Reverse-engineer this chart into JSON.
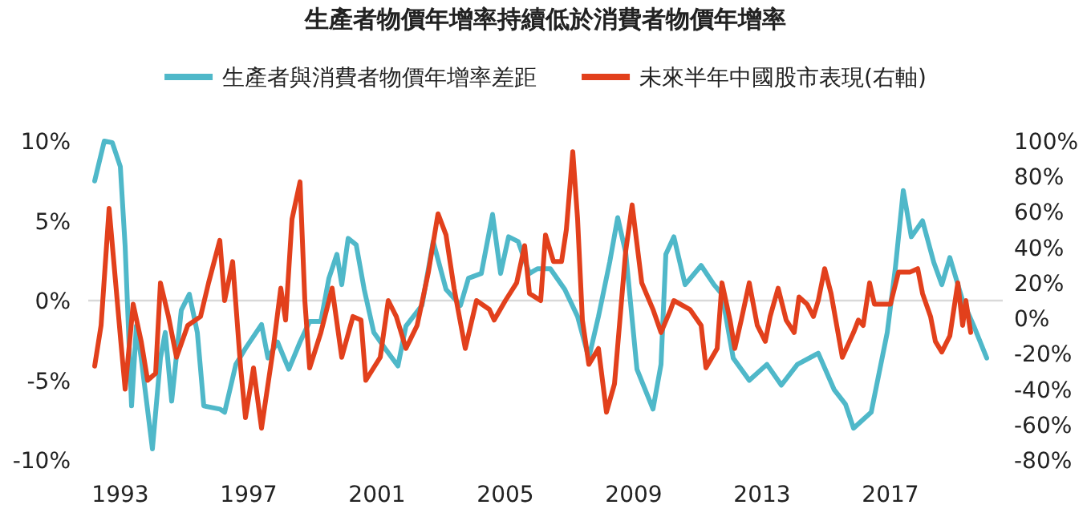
{
  "chart_data": {
    "type": "line",
    "title": "生產者物價年增率持續低於消費者物價年增率",
    "legend": "top",
    "xlim": [
      1992,
      2020.5
    ],
    "xticks": [
      1993,
      1997,
      2001,
      2005,
      2009,
      2013,
      2017
    ],
    "ylim": [
      -10,
      10
    ],
    "yticks": [
      {
        "value": 10,
        "label": "10%"
      },
      {
        "value": 5,
        "label": "5%"
      },
      {
        "value": 0,
        "label": "0%"
      },
      {
        "value": -5,
        "label": "-5%"
      },
      {
        "value": -10,
        "label": "-10%"
      }
    ],
    "y2lim": [
      -80,
      100
    ],
    "y2ticks": [
      {
        "value": 100,
        "label": "100%"
      },
      {
        "value": 80,
        "label": "80%"
      },
      {
        "value": 60,
        "label": "60%"
      },
      {
        "value": 40,
        "label": "40%"
      },
      {
        "value": 20,
        "label": "20%"
      },
      {
        "value": 0,
        "label": "0%"
      },
      {
        "value": -20,
        "label": "-20%"
      },
      {
        "value": -40,
        "label": "-40%"
      },
      {
        "value": -60,
        "label": "-60%"
      },
      {
        "value": -80,
        "label": "-80%"
      }
    ],
    "ref_lines": [
      {
        "axis": "y",
        "value": 0,
        "color": "#d9d9d9"
      }
    ],
    "series": [
      {
        "name": "生產者與消費者物價年增率差距",
        "color": "#4fb8c9",
        "x": [
          1992.2,
          1992.5,
          1992.75,
          1993,
          1993.15,
          1993.35,
          1993.5,
          1993.65,
          1994,
          1994.25,
          1994.4,
          1994.6,
          1994.9,
          1995.15,
          1995.4,
          1995.6,
          1996.1,
          1996.25,
          1996.6,
          1996.9,
          1997.4,
          1997.6,
          1997.9,
          1998.25,
          1998.6,
          1998.9,
          1999.25,
          1999.5,
          1999.75,
          1999.9,
          2000.1,
          2000.35,
          2000.6,
          2000.9,
          2001.25,
          2001.65,
          2001.9,
          2002.4,
          2002.75,
          2003.15,
          2003.6,
          2003.85,
          2004.25,
          2004.6,
          2004.85,
          2005.1,
          2005.4,
          2005.75,
          2006,
          2006.4,
          2006.85,
          2007.25,
          2007.6,
          2007.9,
          2008.25,
          2008.5,
          2008.75,
          2009.1,
          2009.6,
          2009.85,
          2010,
          2010.25,
          2010.6,
          2011.1,
          2011.5,
          2011.75,
          2012.1,
          2012.6,
          2013.15,
          2013.6,
          2014.1,
          2014.75,
          2015.25,
          2015.6,
          2015.85,
          2016.4,
          2016.9,
          2017.15,
          2017.4,
          2017.65,
          2018,
          2018.35,
          2018.6,
          2018.85,
          2019.25,
          2019.6,
          2020
        ],
        "values": [
          7.5,
          10,
          9.9,
          8.4,
          3.4,
          -6.6,
          -1.6,
          -3.6,
          -9.3,
          -3.6,
          -2,
          -6.3,
          -0.6,
          0.4,
          -2,
          -6.6,
          -6.8,
          -7,
          -4,
          -3,
          -1.5,
          -3.6,
          -2.6,
          -4.3,
          -2.6,
          -1.3,
          -1.3,
          1.4,
          2.9,
          1,
          3.9,
          3.5,
          0.7,
          -2,
          -3,
          -4.1,
          -1.6,
          -0.3,
          3.7,
          0.7,
          -0.3,
          1.4,
          1.7,
          5.4,
          1.7,
          4,
          3.7,
          1.7,
          2,
          2,
          0.7,
          -1,
          -3.6,
          -1,
          2.4,
          5.2,
          3,
          -4.3,
          -6.8,
          -4,
          2.9,
          4,
          1,
          2.2,
          1,
          0.4,
          -3.6,
          -5,
          -4,
          -5.3,
          -4,
          -3.3,
          -5.6,
          -6.5,
          -8,
          -7,
          -2,
          2,
          6.9,
          4,
          5,
          2.4,
          1,
          2.7,
          0,
          -1.6,
          -3.6
        ]
      },
      {
        "name": "未來半年中國股市表現(右軸)",
        "color": "#e2401c",
        "axis": "y2",
        "x": [
          1992.2,
          1992.4,
          1992.65,
          1993,
          1993.15,
          1993.4,
          1993.65,
          1993.85,
          1994.1,
          1994.25,
          1994.5,
          1994.75,
          1995.1,
          1995.5,
          1995.75,
          1996.1,
          1996.25,
          1996.5,
          1996.75,
          1996.9,
          1997.15,
          1997.4,
          1997.75,
          1998,
          1998.15,
          1998.35,
          1998.6,
          1998.75,
          1998.9,
          1999.25,
          1999.6,
          1999.9,
          2000.25,
          2000.5,
          2000.65,
          2001.1,
          2001.35,
          2001.6,
          2001.9,
          2002.25,
          2002.6,
          2002.9,
          2003.15,
          2003.4,
          2003.75,
          2004.1,
          2004.5,
          2004.65,
          2005,
          2005.35,
          2005.6,
          2005.75,
          2006.1,
          2006.25,
          2006.5,
          2006.75,
          2006.9,
          2007.1,
          2007.25,
          2007.4,
          2007.6,
          2007.9,
          2008.15,
          2008.4,
          2008.75,
          2008.95,
          2009.25,
          2009.6,
          2009.85,
          2010.15,
          2010.25,
          2010.75,
          2011.1,
          2011.25,
          2011.6,
          2011.75,
          2012,
          2012.15,
          2012.35,
          2012.6,
          2012.85,
          2013.1,
          2013.25,
          2013.5,
          2013.75,
          2014,
          2014.15,
          2014.4,
          2014.6,
          2014.75,
          2014.95,
          2015.15,
          2015.5,
          2015.85,
          2016,
          2016.15,
          2016.35,
          2016.5,
          2017,
          2017.25,
          2017.6,
          2017.85,
          2018,
          2018.25,
          2018.4,
          2018.6,
          2018.85,
          2019.1,
          2019.25,
          2019.35,
          2019.5
        ],
        "values": [
          -27,
          -4,
          62,
          -10,
          -40,
          8,
          -13,
          -35,
          -31,
          20,
          1,
          -22,
          -4,
          1,
          20,
          44,
          10,
          32,
          -28,
          -56,
          -28,
          -62,
          -19,
          17,
          -1,
          56,
          77,
          10,
          -28,
          -8,
          17,
          -22,
          1,
          -1,
          -35,
          -22,
          10,
          1,
          -17,
          -4,
          26,
          59,
          47,
          17,
          -17,
          10,
          5,
          -1,
          10,
          20,
          41,
          14,
          10,
          47,
          32,
          32,
          50,
          94,
          56,
          -1,
          -26,
          -17,
          -53,
          -37,
          38,
          64,
          20,
          5,
          -8,
          5,
          10,
          5,
          -4,
          -28,
          -17,
          20,
          -1,
          -17,
          -1,
          20,
          -4,
          -13,
          1,
          17,
          -1,
          -8,
          12,
          8,
          1,
          10,
          28,
          14,
          -22,
          -8,
          -1,
          -4,
          20,
          8,
          8,
          26,
          26,
          28,
          14,
          1,
          -13,
          -19,
          -10,
          20,
          -4,
          10,
          -8
        ]
      }
    ]
  }
}
